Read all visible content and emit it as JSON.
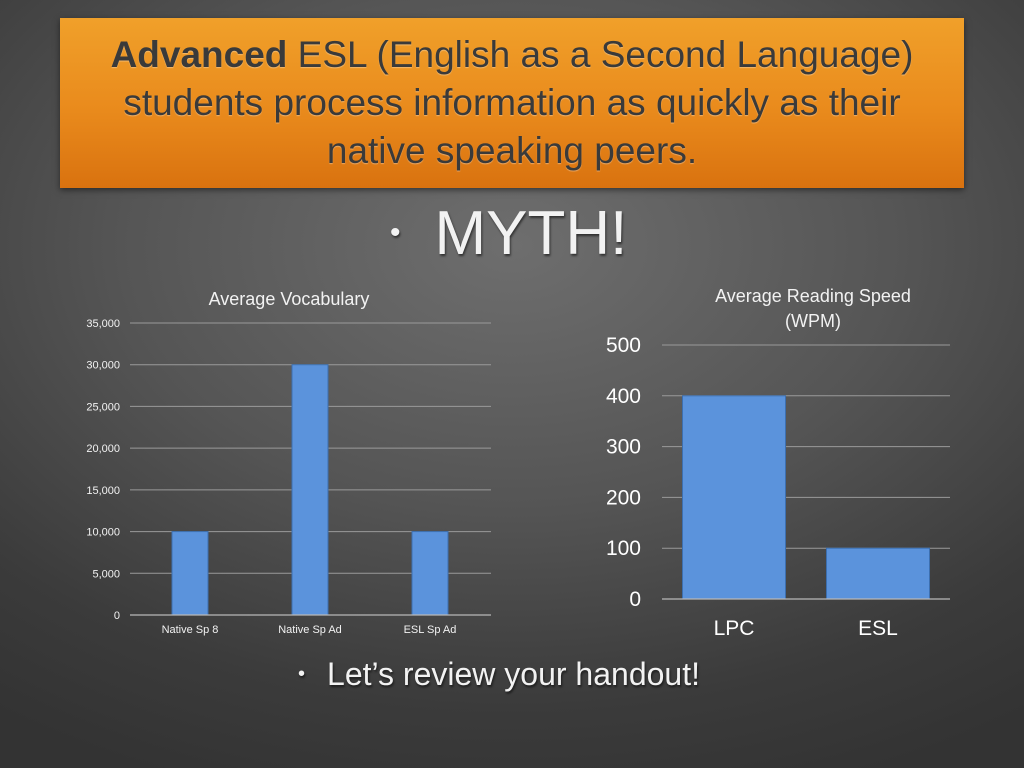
{
  "title": {
    "strong": "Advanced",
    "rest": " ESL (English as a Second Language) students process information as quickly as their native speaking peers."
  },
  "bullets": {
    "myth": "MYTH!",
    "review": "Let’s review your handout!",
    "symbol": "•"
  },
  "colors": {
    "title_band": "#e98a1c",
    "bar": "#5b93dc",
    "background": "#555555"
  },
  "chart_data": [
    {
      "type": "bar",
      "title": "Average Vocabulary",
      "categories": [
        "Native Sp 8",
        "Native Sp Ad",
        "ESL Sp Ad"
      ],
      "values": [
        10000,
        30000,
        10000
      ],
      "yticks": [
        "0",
        "5,000",
        "10,000",
        "15,000",
        "20,000",
        "25,000",
        "30,000",
        "35,000"
      ],
      "ylim": [
        0,
        35000
      ],
      "grid": true,
      "legend": "none"
    },
    {
      "type": "bar",
      "title": [
        "Average Reading Speed",
        "(WPM)"
      ],
      "categories": [
        "LPC",
        "ESL"
      ],
      "values": [
        400,
        100
      ],
      "yticks": [
        "0",
        "100",
        "200",
        "300",
        "400",
        "500"
      ],
      "ylim": [
        0,
        500
      ],
      "grid": true,
      "legend": "none"
    }
  ]
}
